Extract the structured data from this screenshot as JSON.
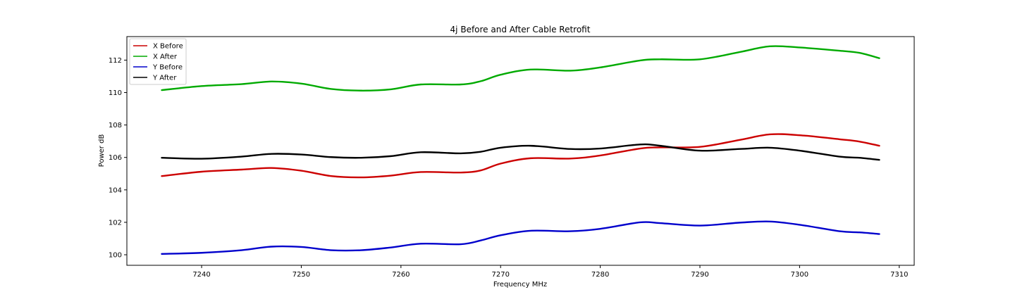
{
  "chart_data": {
    "type": "line",
    "title": "4j Before and After Cable Retrofit",
    "xlabel": "Frequency MHz",
    "ylabel": "Power dB",
    "xlim": [
      7232.5,
      7311.5
    ],
    "ylim": [
      99.35,
      113.45
    ],
    "xticks": [
      7240,
      7250,
      7260,
      7270,
      7280,
      7290,
      7300,
      7310
    ],
    "yticks": [
      100,
      102,
      104,
      106,
      108,
      110,
      112
    ],
    "grid": false,
    "legend_position": "top-left",
    "x": [
      7236,
      7240,
      7244,
      7247,
      7250,
      7253,
      7256,
      7259,
      7262,
      7266,
      7268,
      7270,
      7273,
      7277,
      7280,
      7284,
      7286,
      7290,
      7294,
      7297,
      7300,
      7304,
      7306,
      7308
    ],
    "series": [
      {
        "name": "X Before",
        "color": "#cc0000",
        "values": [
          104.85,
          105.12,
          105.25,
          105.35,
          105.18,
          104.85,
          104.77,
          104.88,
          105.1,
          105.07,
          105.2,
          105.62,
          105.95,
          105.93,
          106.12,
          106.55,
          106.62,
          106.65,
          107.08,
          107.42,
          107.37,
          107.12,
          106.98,
          106.72
        ]
      },
      {
        "name": "X After",
        "color": "#00aa00",
        "values": [
          110.15,
          110.4,
          110.52,
          110.68,
          110.55,
          110.22,
          110.12,
          110.2,
          110.5,
          110.5,
          110.7,
          111.1,
          111.42,
          111.35,
          111.55,
          111.98,
          112.05,
          112.05,
          112.5,
          112.85,
          112.78,
          112.58,
          112.45,
          112.12
        ]
      },
      {
        "name": "Y Before",
        "color": "#0000cc",
        "values": [
          100.05,
          100.12,
          100.28,
          100.5,
          100.48,
          100.28,
          100.28,
          100.45,
          100.68,
          100.65,
          100.88,
          101.2,
          101.48,
          101.45,
          101.6,
          102.0,
          101.95,
          101.8,
          101.98,
          102.05,
          101.85,
          101.45,
          101.38,
          101.28
        ]
      },
      {
        "name": "Y After",
        "color": "#000000",
        "values": [
          105.98,
          105.92,
          106.05,
          106.22,
          106.18,
          106.02,
          105.98,
          106.08,
          106.32,
          106.25,
          106.35,
          106.6,
          106.72,
          106.52,
          106.55,
          106.8,
          106.72,
          106.42,
          106.52,
          106.6,
          106.42,
          106.05,
          105.98,
          105.85
        ]
      }
    ]
  }
}
